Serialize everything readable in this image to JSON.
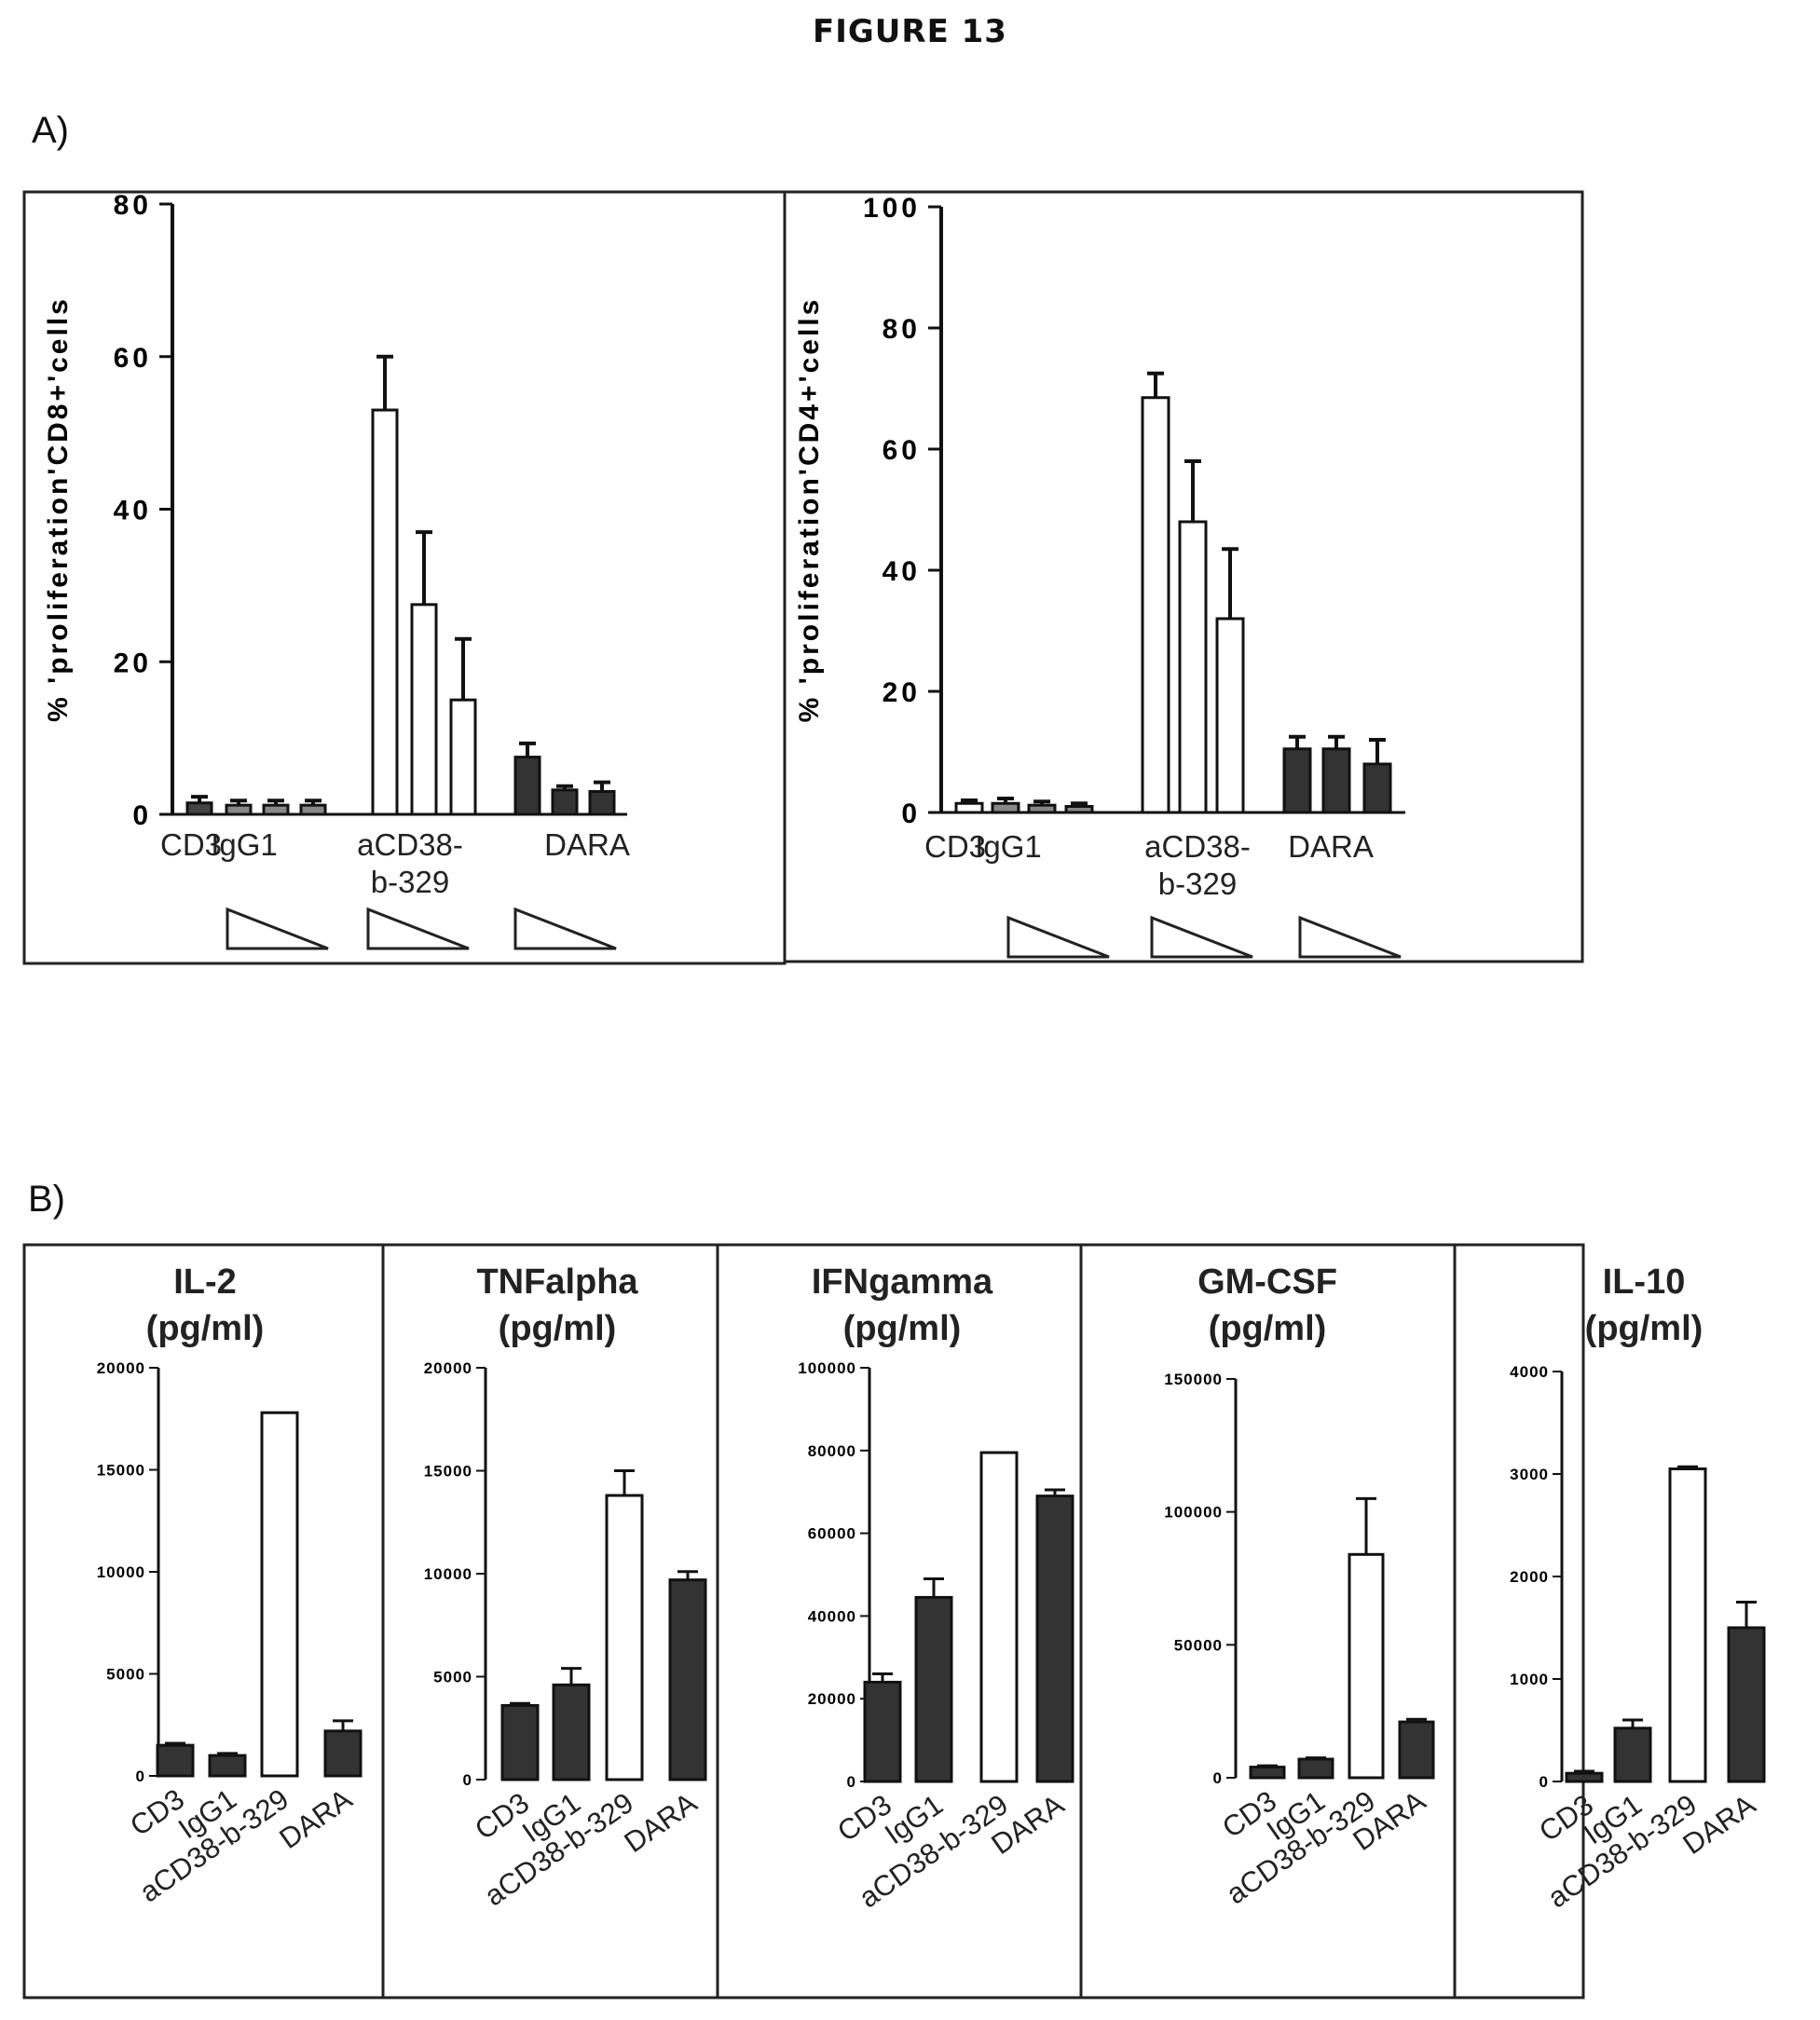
{
  "figure_title": "FIGURE 13",
  "panel_labels": [
    "A)",
    "B)"
  ],
  "chart_data": [
    {
      "type": "bar",
      "panel": "A)",
      "ylabel": "% 'proliferation'CD8+'cells",
      "ylim": [
        0,
        80
      ],
      "yticks": [
        "0",
        "20",
        "40",
        "60",
        "80"
      ],
      "group_labels": [
        "CD3",
        "IgG1",
        "aCD38-\nb-329",
        "DARA"
      ],
      "bars": [
        {
          "group": "CD3",
          "value": 1.5,
          "error": 0.8,
          "fill": "#444444"
        },
        {
          "group": "IgG1",
          "value": 1.2,
          "error": 0.6,
          "fill": "#888888"
        },
        {
          "group": "IgG1",
          "value": 1.2,
          "error": 0.6,
          "fill": "#888888"
        },
        {
          "group": "IgG1",
          "value": 1.2,
          "error": 0.6,
          "fill": "#888888"
        },
        {
          "group": "aCD38-b-329",
          "value": 53,
          "error": 7,
          "fill": "#ffffff"
        },
        {
          "group": "aCD38-b-329",
          "value": 27.5,
          "error": 9.5,
          "fill": "#ffffff"
        },
        {
          "group": "aCD38-b-329",
          "value": 15,
          "error": 8,
          "fill": "#ffffff"
        },
        {
          "group": "DARA",
          "value": 7.5,
          "error": 1.8,
          "fill": "#333333"
        },
        {
          "group": "DARA",
          "value": 3.2,
          "error": 0.5,
          "fill": "#333333"
        },
        {
          "group": "DARA",
          "value": 3.0,
          "error": 1.2,
          "fill": "#333333"
        }
      ]
    },
    {
      "type": "bar",
      "panel": "A)",
      "ylabel": "% 'proliferation'CD4+'cells",
      "ylim": [
        0,
        100
      ],
      "yticks": [
        "0",
        "20",
        "40",
        "60",
        "80",
        "100"
      ],
      "group_labels": [
        "CD3",
        "IgG1",
        "aCD38-\nb-329",
        "DARA"
      ],
      "bars": [
        {
          "group": "CD3",
          "value": 1.5,
          "error": 0.5,
          "fill": "#ffffff"
        },
        {
          "group": "IgG1",
          "value": 1.5,
          "error": 0.8,
          "fill": "#888888"
        },
        {
          "group": "IgG1",
          "value": 1.2,
          "error": 0.6,
          "fill": "#888888"
        },
        {
          "group": "IgG1",
          "value": 1.0,
          "error": 0.5,
          "fill": "#888888"
        },
        {
          "group": "aCD38-b-329",
          "value": 68.5,
          "error": 4,
          "fill": "#ffffff"
        },
        {
          "group": "aCD38-b-329",
          "value": 48,
          "error": 10,
          "fill": "#ffffff"
        },
        {
          "group": "aCD38-b-329",
          "value": 32,
          "error": 11.5,
          "fill": "#ffffff"
        },
        {
          "group": "DARA",
          "value": 10.5,
          "error": 2,
          "fill": "#333333"
        },
        {
          "group": "DARA",
          "value": 10.5,
          "error": 2,
          "fill": "#333333"
        },
        {
          "group": "DARA",
          "value": 8,
          "error": 4,
          "fill": "#333333"
        }
      ]
    },
    {
      "type": "bar",
      "panel": "B)",
      "title": "IL-2\n(pg/ml)",
      "categories": [
        "CD3",
        "IgG1",
        "aCD38-b-329",
        "DARA"
      ],
      "values": [
        1500,
        1000,
        17800,
        2200
      ],
      "errors": [
        100,
        100,
        0,
        500
      ],
      "fills": [
        "#333333",
        "#333333",
        "#ffffff",
        "#333333"
      ],
      "ylim": [
        0,
        20000
      ],
      "yticks": [
        "0",
        "5000",
        "10000",
        "15000",
        "20000"
      ]
    },
    {
      "type": "bar",
      "panel": "B)",
      "title": "TNFalpha\n(pg/ml)",
      "categories": [
        "CD3",
        "IgG1",
        "aCD38-b-329",
        "DARA"
      ],
      "values": [
        3600,
        4600,
        13800,
        9700
      ],
      "errors": [
        100,
        800,
        1200,
        400
      ],
      "fills": [
        "#333333",
        "#333333",
        "#ffffff",
        "#333333"
      ],
      "ylim": [
        0,
        20000
      ],
      "yticks": [
        "0",
        "5000",
        "10000",
        "15000",
        "20000"
      ]
    },
    {
      "type": "bar",
      "panel": "B)",
      "title": "IFNgamma\n(pg/ml)",
      "categories": [
        "CD3",
        "IgG1",
        "aCD38-b-329",
        "DARA"
      ],
      "values": [
        24000,
        44500,
        79500,
        69000
      ],
      "errors": [
        2000,
        4500,
        0,
        1500
      ],
      "fills": [
        "#333333",
        "#333333",
        "#ffffff",
        "#333333"
      ],
      "ylim": [
        0,
        100000
      ],
      "yticks": [
        "0",
        "20000",
        "40000",
        "60000",
        "80000",
        "100000"
      ]
    },
    {
      "type": "bar",
      "panel": "B)",
      "title": "GM-CSF\n(pg/ml)",
      "categories": [
        "CD3",
        "IgG1",
        "aCD38-b-329",
        "DARA"
      ],
      "values": [
        4000,
        7000,
        84000,
        21000
      ],
      "errors": [
        500,
        500,
        21000,
        1000
      ],
      "fills": [
        "#333333",
        "#333333",
        "#ffffff",
        "#333333"
      ],
      "ylim": [
        0,
        150000
      ],
      "yticks": [
        "0",
        "50000",
        "100000",
        "150000"
      ]
    },
    {
      "type": "bar",
      "panel": "B)",
      "title": "IL-10\n(pg/ml)",
      "categories": [
        "CD3",
        "IgG1",
        "aCD38-b-329",
        "DARA"
      ],
      "values": [
        80,
        520,
        3050,
        1500
      ],
      "errors": [
        20,
        80,
        20,
        250
      ],
      "fills": [
        "#333333",
        "#333333",
        "#ffffff",
        "#333333"
      ],
      "ylim": [
        0,
        4000
      ],
      "yticks": [
        "0",
        "1000",
        "2000",
        "3000",
        "4000"
      ]
    }
  ]
}
